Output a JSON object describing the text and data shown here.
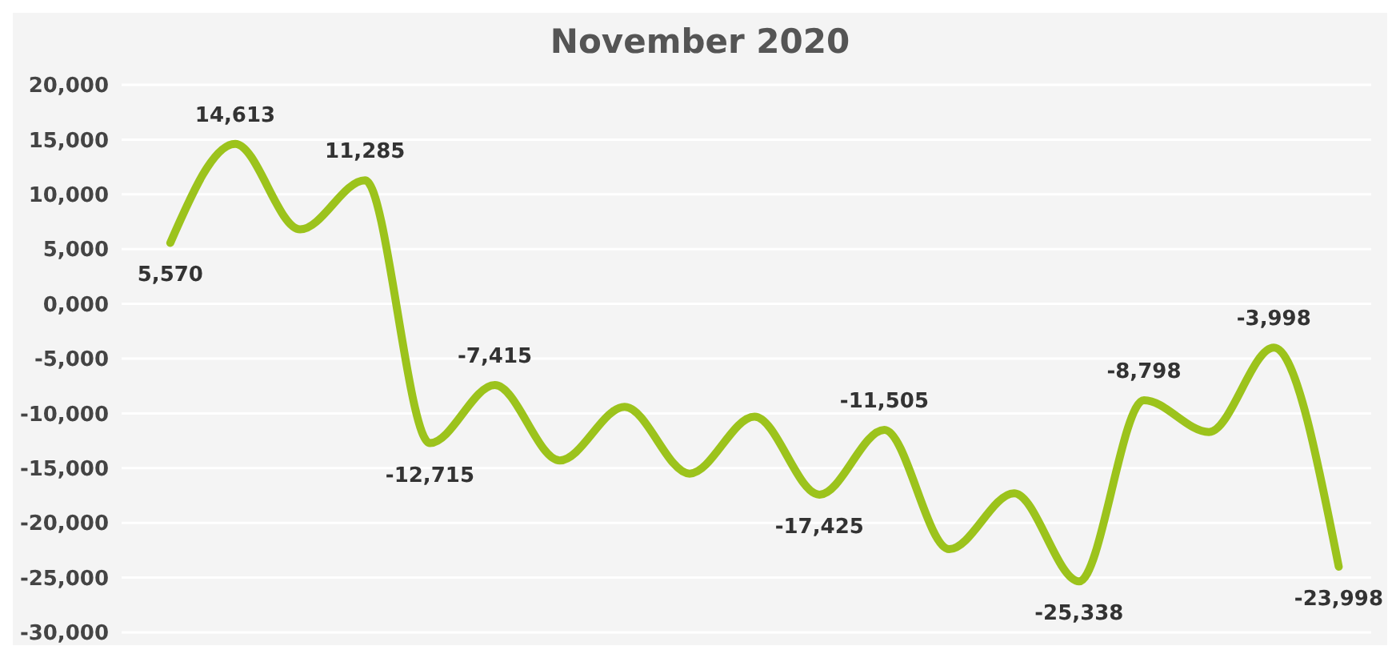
{
  "chart_data": {
    "type": "line",
    "title": "November 2020",
    "categories": [
      null,
      null,
      null,
      null,
      null,
      null,
      null,
      null,
      null,
      null,
      null,
      null,
      null,
      null,
      null,
      null,
      null,
      null,
      null
    ],
    "series": [
      {
        "color": "#9cc31c",
        "values": [
          5570,
          14613,
          6800,
          11285,
          -12715,
          -7415,
          -14300,
          -9400,
          -15500,
          -10300,
          -17425,
          -11505,
          -22400,
          -17300,
          -25338,
          -8798,
          -11700,
          -3998,
          -23998
        ],
        "value_labels": [
          "5,570",
          "14,613",
          null,
          "11,285",
          "-12,715",
          "-7,415",
          null,
          null,
          null,
          null,
          "-17,425",
          "-11,505",
          null,
          null,
          "-25,338",
          "-8,798",
          null,
          "-3,998",
          "-23,998"
        ]
      }
    ],
    "ylim": [
      -30000,
      20000
    ],
    "yticks": [
      {
        "value": -30000,
        "label": "-30,000"
      },
      {
        "value": -25000,
        "label": "-25,000"
      },
      {
        "value": -20000,
        "label": "-20,000"
      },
      {
        "value": -15000,
        "label": "-15,000"
      },
      {
        "value": -10000,
        "label": "-10,000"
      },
      {
        "value": -5000,
        "label": "-5,000"
      },
      {
        "value": 0,
        "label": "0,000"
      },
      {
        "value": 5000,
        "label": "5,000"
      },
      {
        "value": 10000,
        "label": "10,000"
      },
      {
        "value": 15000,
        "label": "15,000"
      },
      {
        "value": 20000,
        "label": "20,000"
      }
    ],
    "grid": "y",
    "tick_labels": "y",
    "marker": "none",
    "line_style": "solid"
  }
}
